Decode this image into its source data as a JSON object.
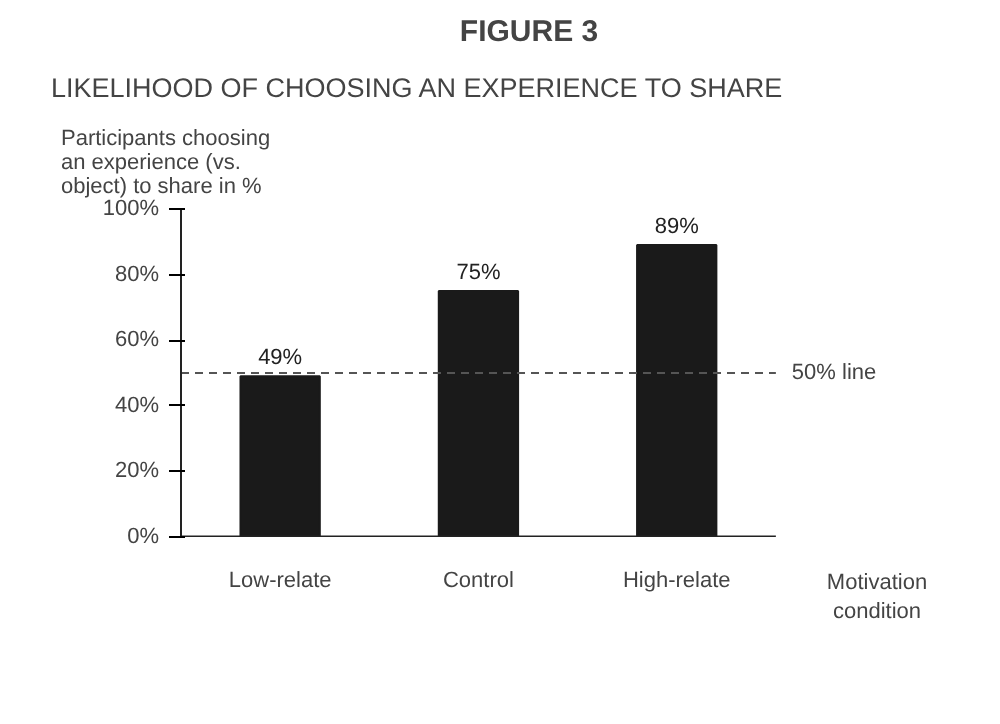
{
  "chart_data": {
    "type": "bar",
    "title": "FIGURE 3",
    "subtitle": "LIKELIHOOD OF CHOOSING AN EXPERIENCE TO SHARE",
    "ylabel": "Participants choosing an experience (vs. object) to share in %",
    "xlabel": "Motivation condition",
    "categories": [
      "Low-relate",
      "Control",
      "High-relate"
    ],
    "values": [
      49,
      75,
      89
    ],
    "color": "#1a1a1a",
    "data_labels": true,
    "value_labels": [
      "49%",
      "75%",
      "89%"
    ],
    "ylim": [
      0,
      100
    ],
    "yticks": [
      {
        "value": 0,
        "label": "0%"
      },
      {
        "value": 20,
        "label": "20%"
      },
      {
        "value": 40,
        "label": "40%"
      },
      {
        "value": 60,
        "label": "60%"
      },
      {
        "value": 80,
        "label": "80%"
      },
      {
        "value": 100,
        "label": "100%"
      }
    ],
    "ref_lines": [
      {
        "axis": "y",
        "value": 50,
        "label": "50% line",
        "color": "#555555",
        "line_style": "dashed"
      }
    ],
    "grid": false
  }
}
